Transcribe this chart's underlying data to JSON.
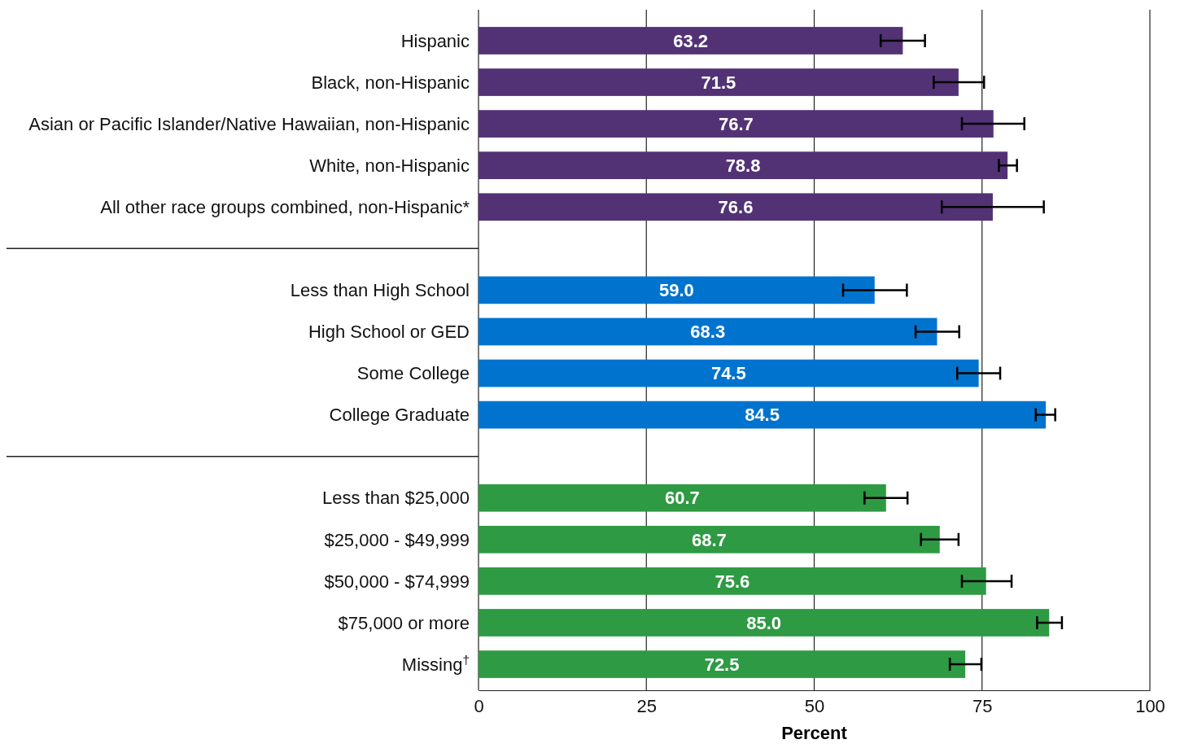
{
  "chart_data": {
    "type": "bar",
    "orientation": "horizontal",
    "xlabel": "Percent",
    "categories": [
      "Hispanic",
      "Black, non-Hispanic",
      "Asian or Pacific Islander/Native Hawaiian, non-Hispanic",
      "White, non-Hispanic",
      "All other race groups combined, non-Hispanic*",
      null,
      "Less than High School",
      "High School or GED",
      "Some College",
      "College Graduate",
      null,
      "Less than $25,000",
      "$25,000 - $49,999",
      "$50,000 - $74,999",
      "$75,000 or more",
      "Missing$^{†}$"
    ],
    "values": [
      63.2,
      71.5,
      76.7,
      78.8,
      76.6,
      null,
      59.0,
      68.3,
      74.5,
      84.5,
      null,
      60.7,
      68.7,
      75.6,
      85.0,
      72.5
    ],
    "value_labels": [
      "63.2",
      "71.5",
      "76.7",
      "78.8",
      "76.6",
      null,
      "59.0",
      "68.3",
      "74.5",
      "84.5",
      null,
      "60.7",
      "68.7",
      "75.6",
      "85.0",
      "72.5"
    ],
    "colors": [
      "#523275",
      "#523275",
      "#523275",
      "#523275",
      "#523275",
      null,
      "#0073cf",
      "#0073cf",
      "#0073cf",
      "#0073cf",
      null,
      "#2e9a43",
      "#2e9a43",
      "#2e9a43",
      "#2e9a43",
      "#2e9a43"
    ],
    "errors": [
      [
        59.9,
        66.5
      ],
      [
        67.8,
        75.3
      ],
      [
        72.0,
        81.3
      ],
      [
        77.5,
        80.2
      ],
      [
        69.0,
        84.2
      ],
      null,
      [
        54.3,
        63.8
      ],
      [
        65.1,
        71.6
      ],
      [
        71.3,
        77.7
      ],
      [
        83.0,
        85.9
      ],
      null,
      [
        57.5,
        63.9
      ],
      [
        65.9,
        71.5
      ],
      [
        72.0,
        79.4
      ],
      [
        83.2,
        86.9
      ],
      [
        70.2,
        74.9
      ]
    ],
    "xlim": [
      0,
      100
    ],
    "xticks": [
      0,
      25,
      50,
      75,
      100
    ],
    "grid": "x"
  }
}
